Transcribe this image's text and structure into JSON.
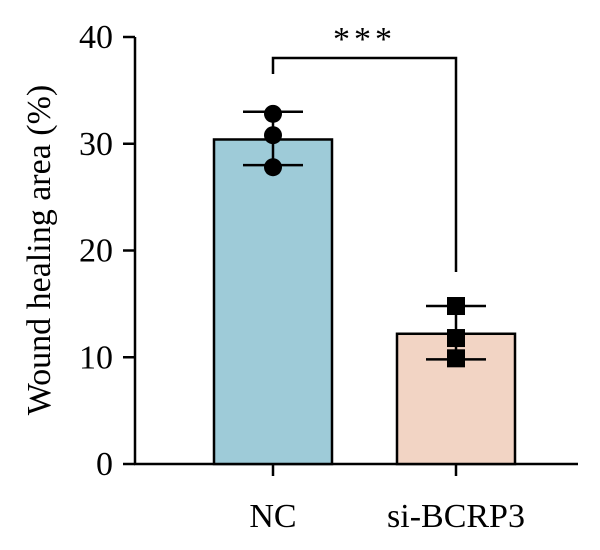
{
  "chart_data": {
    "type": "bar",
    "categories": [
      "NC",
      "si-BCRP3"
    ],
    "values": [
      30.4,
      12.2
    ],
    "error": [
      {
        "upper": 33.0,
        "lower": 28.0
      },
      {
        "upper": 14.8,
        "lower": 9.8
      }
    ],
    "points": [
      [
        32.8,
        30.8,
        27.8
      ],
      [
        14.8,
        11.8,
        9.9
      ]
    ],
    "marker_shapes": [
      "circle",
      "square"
    ],
    "bar_colors": [
      "#9ecbd8",
      "#f2d4c4"
    ],
    "ylabel": "Wound healing area (%)",
    "xlabel": "",
    "ylim": [
      0,
      40
    ],
    "yticks": [
      "0",
      "10",
      "20",
      "30",
      "40"
    ],
    "significance": {
      "between": [
        "NC",
        "si-BCRP3"
      ],
      "label": "***"
    },
    "grid": false
  }
}
